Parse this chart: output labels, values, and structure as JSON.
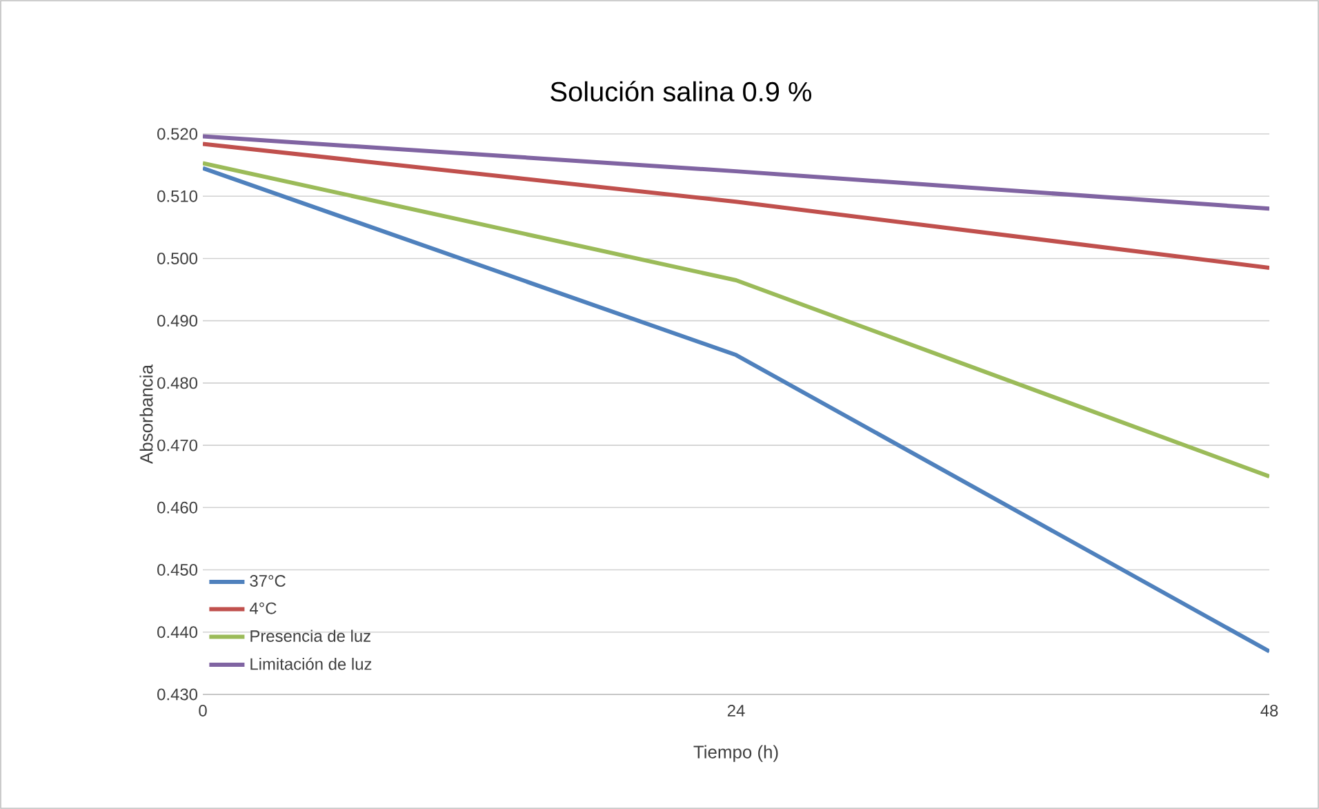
{
  "chart_data": {
    "type": "line",
    "title": "Solución salina 0.9 %",
    "xlabel": "Tiempo (h)",
    "ylabel": "Absorbancia",
    "x": [
      0,
      24,
      48
    ],
    "series": [
      {
        "name": "37°C",
        "color": "#4f81bd",
        "values": [
          0.5145,
          0.4845,
          0.4369
        ]
      },
      {
        "name": "4°C",
        "color": "#c0504d",
        "values": [
          0.5184,
          0.5091,
          0.4985
        ]
      },
      {
        "name": "Presencia de luz",
        "color": "#9bbb59",
        "values": [
          0.5153,
          0.4965,
          0.465
        ]
      },
      {
        "name": "Limitación de luz",
        "color": "#8064a2",
        "values": [
          0.5196,
          0.514,
          0.508
        ]
      }
    ],
    "xlim": [
      0,
      48
    ],
    "xticks": [
      0,
      24,
      48
    ],
    "ylim": [
      0.43,
      0.52
    ],
    "yticks": [
      {
        "value": 0.43,
        "label": "0.430"
      },
      {
        "value": 0.44,
        "label": "0.440"
      },
      {
        "value": 0.45,
        "label": "0.450"
      },
      {
        "value": 0.46,
        "label": "0.460"
      },
      {
        "value": 0.47,
        "label": "0.470"
      },
      {
        "value": 0.48,
        "label": "0.480"
      },
      {
        "value": 0.49,
        "label": "0.490"
      },
      {
        "value": 0.5,
        "label": "0.500"
      },
      {
        "value": 0.51,
        "label": "0.510"
      },
      {
        "value": 0.52,
        "label": "0.520"
      }
    ],
    "grid": "y",
    "legend": "bottom left",
    "marker": "none",
    "line_style": "solid"
  }
}
